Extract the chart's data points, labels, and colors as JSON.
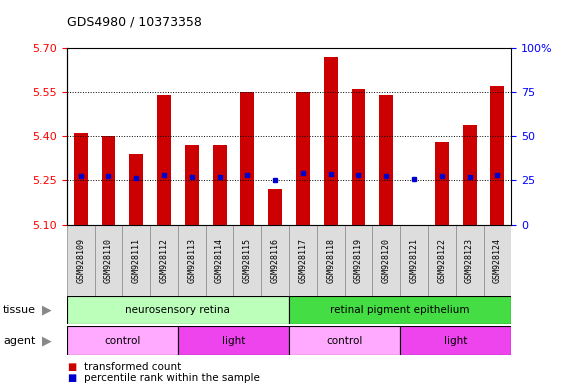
{
  "title": "GDS4980 / 10373358",
  "samples": [
    "GSM928109",
    "GSM928110",
    "GSM928111",
    "GSM928112",
    "GSM928113",
    "GSM928114",
    "GSM928115",
    "GSM928116",
    "GSM928117",
    "GSM928118",
    "GSM928119",
    "GSM928120",
    "GSM928121",
    "GSM928122",
    "GSM928123",
    "GSM928124"
  ],
  "bar_values": [
    5.41,
    5.4,
    5.34,
    5.54,
    5.37,
    5.37,
    5.55,
    5.22,
    5.55,
    5.67,
    5.56,
    5.54,
    5.1,
    5.38,
    5.44,
    5.57
  ],
  "percentile_values": [
    5.265,
    5.265,
    5.26,
    5.27,
    5.262,
    5.262,
    5.268,
    5.25,
    5.275,
    5.272,
    5.268,
    5.265,
    5.255,
    5.265,
    5.262,
    5.268
  ],
  "ylim_left": [
    5.1,
    5.7
  ],
  "yticks_left": [
    5.1,
    5.25,
    5.4,
    5.55,
    5.7
  ],
  "ylim_right": [
    0,
    100
  ],
  "yticks_right": [
    0,
    25,
    50,
    75,
    100
  ],
  "ytick_labels_right": [
    "0",
    "25",
    "50",
    "75",
    "100%"
  ],
  "bar_color": "#cc0000",
  "percentile_color": "#0000cc",
  "bar_bottom": 5.1,
  "grid_lines": [
    5.25,
    5.4,
    5.55
  ],
  "tissue_groups": [
    {
      "label": "neurosensory retina",
      "start": 0,
      "end": 8,
      "color": "#bbffbb"
    },
    {
      "label": "retinal pigment epithelium",
      "start": 8,
      "end": 16,
      "color": "#44dd44"
    }
  ],
  "agent_groups": [
    {
      "label": "control",
      "start": 0,
      "end": 4,
      "color": "#ffaaff"
    },
    {
      "label": "light",
      "start": 4,
      "end": 8,
      "color": "#ee44ee"
    },
    {
      "label": "control",
      "start": 8,
      "end": 12,
      "color": "#ffaaff"
    },
    {
      "label": "light",
      "start": 12,
      "end": 16,
      "color": "#ee44ee"
    }
  ],
  "legend_items": [
    {
      "label": "transformed count",
      "color": "#cc0000"
    },
    {
      "label": "percentile rank within the sample",
      "color": "#0000cc"
    }
  ],
  "bg_color": "#ffffff",
  "plot_bg_color": "#ffffff",
  "cell_bg_color": "#dddddd",
  "cell_border_color": "#888888"
}
